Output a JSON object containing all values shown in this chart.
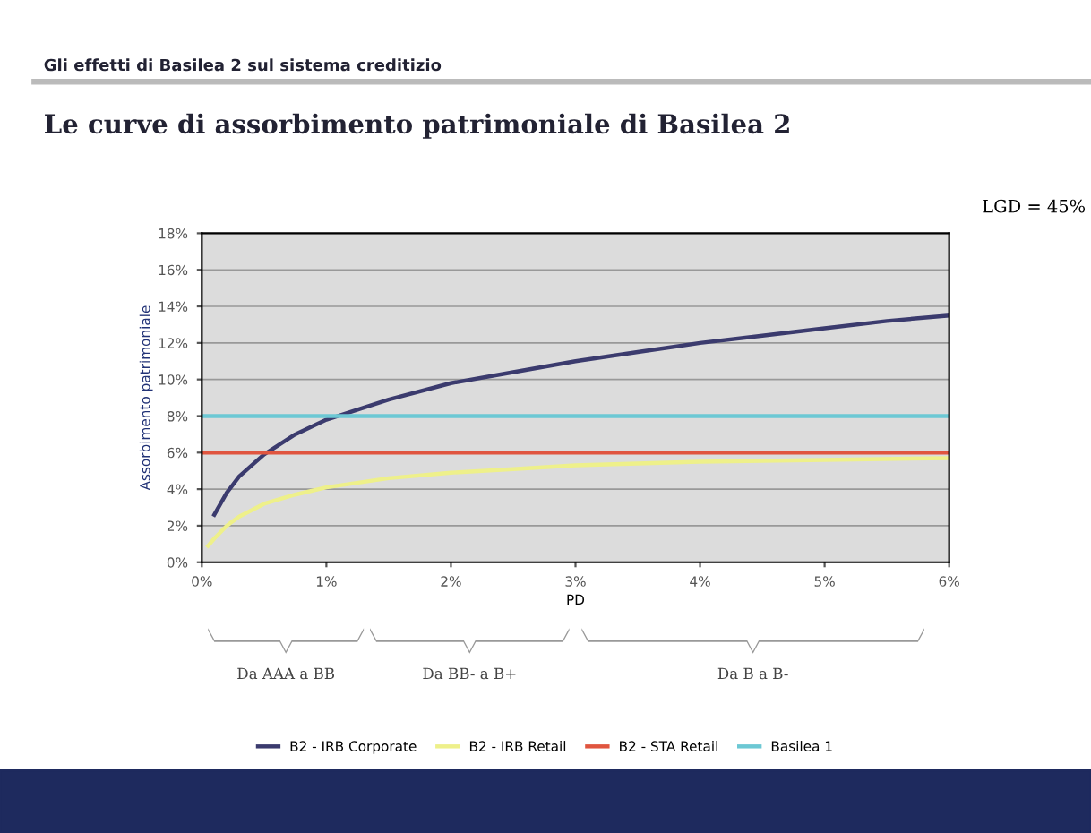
{
  "chart_data": {
    "type": "line",
    "subtitle": "Gli effetti di Basilea 2 sul sistema creditizio",
    "title": "Le curve di assorbimento patrimoniale di Basilea 2",
    "xlabel": "PD",
    "ylabel": "Assorbimento patrimoniale",
    "annotations": [
      "LGD = 45%",
      "Da AAA a BB",
      "Da BB- a B+",
      "Da B a B-"
    ],
    "series": [
      {
        "name": "B2 - IRB Corporate",
        "color": "#3b3b6e",
        "x": [
          0.1,
          0.2,
          0.3,
          0.5,
          0.75,
          1,
          1.5,
          2,
          2.5,
          3,
          3.5,
          4,
          4.5,
          5,
          5.5,
          6
        ],
        "values": [
          2.6,
          3.8,
          4.7,
          5.9,
          7.0,
          7.8,
          8.9,
          9.8,
          10.4,
          11.0,
          11.5,
          12.0,
          12.4,
          12.8,
          13.2,
          13.5
        ]
      },
      {
        "name": "B2 - IRB Retail",
        "color": "#eef08a",
        "x": [
          0.05,
          0.1,
          0.2,
          0.3,
          0.5,
          0.75,
          1,
          1.5,
          2,
          2.5,
          3,
          4,
          5,
          6
        ],
        "values": [
          0.9,
          1.3,
          2.0,
          2.5,
          3.2,
          3.7,
          4.1,
          4.6,
          4.9,
          5.1,
          5.3,
          5.5,
          5.6,
          5.7
        ]
      },
      {
        "name": "B2 - STA Retail",
        "color": "#e0553f",
        "x": [
          0,
          6
        ],
        "values": [
          6,
          6
        ]
      },
      {
        "name": "Basilea 1",
        "color": "#6cc8d4",
        "x": [
          0,
          6
        ],
        "values": [
          8,
          8
        ]
      }
    ],
    "xlim": [
      0,
      6
    ],
    "ylim": [
      0,
      18
    ],
    "xticks": [
      {
        "value": 0,
        "label": "0%"
      },
      {
        "value": 1,
        "label": "1%"
      },
      {
        "value": 2,
        "label": "2%"
      },
      {
        "value": 3,
        "label": "3%"
      },
      {
        "value": 4,
        "label": "4%"
      },
      {
        "value": 5,
        "label": "5%"
      },
      {
        "value": 6,
        "label": "6%"
      }
    ],
    "yticks": [
      {
        "value": 0,
        "label": "0%"
      },
      {
        "value": 2,
        "label": "2%"
      },
      {
        "value": 4,
        "label": "4%"
      },
      {
        "value": 6,
        "label": "6%"
      },
      {
        "value": 8,
        "label": "8%"
      },
      {
        "value": 10,
        "label": "10%"
      },
      {
        "value": 12,
        "label": "12%"
      },
      {
        "value": 14,
        "label": "14%"
      },
      {
        "value": 16,
        "label": "16%"
      },
      {
        "value": 18,
        "label": "18%"
      }
    ],
    "grid": "y",
    "legend": "bottom",
    "marker": "none",
    "line_style": "solid"
  }
}
